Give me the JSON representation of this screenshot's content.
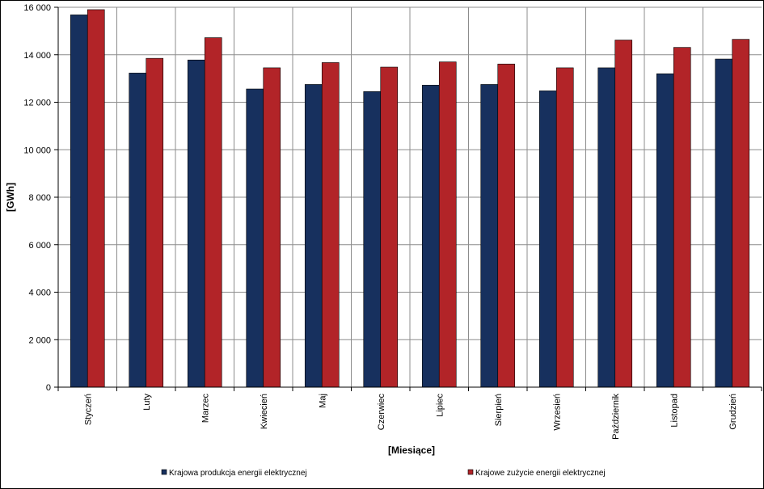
{
  "chart_data": {
    "type": "bar",
    "title": "",
    "xlabel": "[Miesiące]",
    "ylabel": "[GWh]",
    "ylim": [
      0,
      16000
    ],
    "y_ticks": [
      0,
      2000,
      4000,
      6000,
      8000,
      10000,
      12000,
      14000,
      16000
    ],
    "y_tick_labels": [
      "0",
      "2 000",
      "4 000",
      "6 000",
      "8 000",
      "10 000",
      "12 000",
      "14 000",
      "16 000"
    ],
    "grid": true,
    "legend_position": "bottom",
    "categories": [
      "Styczeń",
      "Luty",
      "Marzec",
      "Kwiecień",
      "Maj",
      "Czerwiec",
      "Lipiec",
      "Sierpień",
      "Wrzesień",
      "Październik",
      "Listopad",
      "Grudzień"
    ],
    "series": [
      {
        "name": "Krajowa produkcja energii elektrycznej",
        "color": "#17305e",
        "values": [
          15680,
          13230,
          13780,
          12560,
          12750,
          12450,
          12720,
          12750,
          12480,
          13450,
          13200,
          13820
        ]
      },
      {
        "name": "Krajowe zużycie energii elektrycznej",
        "color": "#b22428",
        "values": [
          15900,
          13850,
          14720,
          13450,
          13670,
          13480,
          13700,
          13610,
          13450,
          14620,
          14310,
          14650
        ]
      }
    ]
  }
}
